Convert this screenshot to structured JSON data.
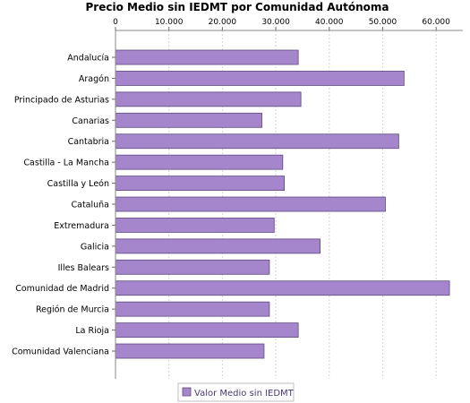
{
  "chart_data": {
    "type": "bar",
    "orientation": "horizontal",
    "title": "Precio Medio sin IEDMT por Comunidad Autónoma",
    "categories": [
      "Andalucía",
      "Aragón",
      "Principado de Asturias",
      "Canarias",
      "Cantabria",
      "Castilla - La Mancha",
      "Castilla y León",
      "Cataluña",
      "Extremadura",
      "Galicia",
      "Illes Balears",
      "Comunidad de Madrid",
      "Región de Murcia",
      "La Rioja",
      "Comunidad Valenciana"
    ],
    "series": [
      {
        "name": "Valor Medio sin IEDMT",
        "color": "#a585cb",
        "values": [
          34200,
          54000,
          34700,
          27400,
          53000,
          31300,
          31600,
          50500,
          29700,
          38300,
          28800,
          62500,
          28800,
          34200,
          27800
        ]
      }
    ],
    "xlim": [
      0,
      65000
    ],
    "xticks": [
      0,
      10000,
      20000,
      30000,
      40000,
      50000,
      60000
    ],
    "xtick_labels": [
      "0",
      "10.000",
      "20.000",
      "30.000",
      "40.000",
      "50.000",
      "60.000"
    ],
    "axis_position": "top",
    "grid": true,
    "legend_position": "bottom-center"
  }
}
